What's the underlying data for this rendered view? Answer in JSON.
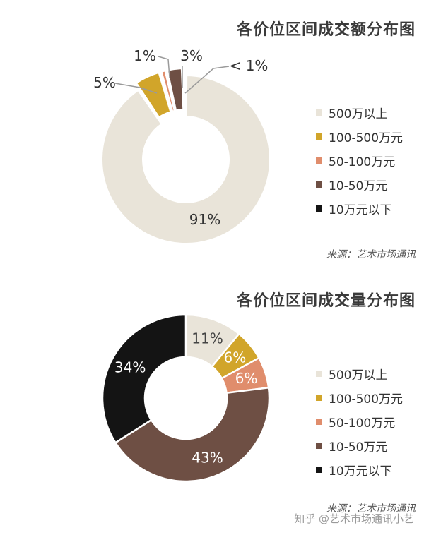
{
  "colors": {
    "segments": [
      "#e9e4d9",
      "#d1a52a",
      "#e08d6c",
      "#6e4f44",
      "#141414"
    ],
    "leader": "#9a9a9a"
  },
  "legend_items": [
    "500万以上",
    "100-500万元",
    "50-100万元",
    "10-50万元",
    "10万元以下"
  ],
  "watermark": "知乎 @艺术市场通讯小艺",
  "chart_data": [
    {
      "type": "pie",
      "title": "各价位区间成交额分布图",
      "source": "来源：艺术市场通讯",
      "categories": [
        "500万以上",
        "100-500万元",
        "50-100万元",
        "10-50万元",
        "10万元以下"
      ],
      "values": [
        91,
        5,
        1,
        3,
        0.5
      ],
      "labels": [
        "91%",
        "5%",
        "1%",
        "3%",
        "< 1%"
      ],
      "exploded": true
    },
    {
      "type": "pie",
      "title": "各价位区间成交量分布图",
      "source": "来源：艺术市场通讯",
      "categories": [
        "500万以上",
        "100-500万元",
        "50-100万元",
        "10-50万元",
        "10万元以下"
      ],
      "values": [
        11,
        6,
        6,
        43,
        34
      ],
      "labels": [
        "11%",
        "6%",
        "6%",
        "43%",
        "34%"
      ],
      "exploded": false
    }
  ]
}
